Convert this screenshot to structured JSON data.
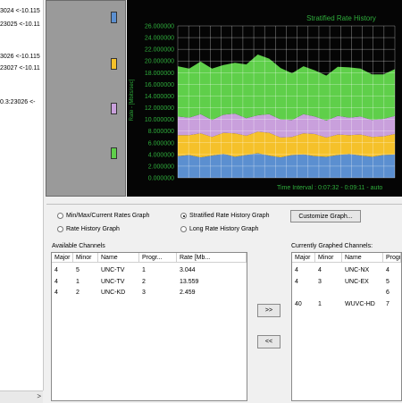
{
  "left_list": {
    "items": [
      "3024 <-10.115",
      "23025 <-10.11",
      "3026 <-10.115",
      "23027 <-10.11",
      "0.3:23026 <-"
    ],
    "scroll_arrow": ">"
  },
  "legend": {
    "items": [
      {
        "label": "",
        "color": "#5b8fd0"
      },
      {
        "label": "",
        "color": "#f5c12a"
      },
      {
        "label": "",
        "color": "#c9a0dc"
      },
      {
        "label": "",
        "color": "#5fcf4a"
      }
    ]
  },
  "chart_data": {
    "type": "area",
    "stacked": true,
    "title": "Stratified Rate History",
    "ylabel": "Rate - [Mbits/sec]",
    "footer": "Time Interval : 0:07:32 - 0:09:11  -  auto",
    "ylim": [
      0,
      26
    ],
    "yticks": [
      "0.000000",
      "2.000000",
      "4.000000",
      "6.000000",
      "8.000000",
      "10.000000",
      "12.000000",
      "14.000000",
      "16.000000",
      "18.000000",
      "20.000000",
      "22.000000",
      "24.000000",
      "26.000000"
    ],
    "x": [
      0,
      1,
      2,
      3,
      4,
      5,
      6,
      7,
      8,
      9,
      10,
      11,
      12,
      13,
      14,
      15,
      16,
      17,
      18,
      19
    ],
    "series": [
      {
        "color": "#5b8fd0",
        "values": [
          3.7,
          3.9,
          3.5,
          3.8,
          4.1,
          3.6,
          3.9,
          4.2,
          3.8,
          3.5,
          3.9,
          4.0,
          3.7,
          3.6,
          3.9,
          4.1,
          3.8,
          3.6,
          3.9,
          4.0
        ]
      },
      {
        "color": "#f5c12a",
        "values": [
          3.6,
          3.4,
          4.1,
          3.2,
          3.6,
          4.0,
          3.3,
          3.7,
          3.9,
          3.4,
          3.1,
          3.6,
          3.8,
          3.3,
          3.5,
          3.2,
          3.6,
          3.4,
          3.2,
          3.5
        ]
      },
      {
        "color": "#c9a0dc",
        "values": [
          3.2,
          3.0,
          3.3,
          2.9,
          3.1,
          3.4,
          3.0,
          2.8,
          3.2,
          3.1,
          2.9,
          3.3,
          3.0,
          2.9,
          3.2,
          3.0,
          3.1,
          2.9,
          3.0,
          3.1
        ]
      },
      {
        "color": "#5fcf4a",
        "values": [
          8.6,
          8.4,
          9.0,
          8.8,
          8.5,
          8.7,
          9.2,
          10.4,
          9.5,
          8.8,
          8.0,
          8.2,
          7.9,
          7.7,
          8.4,
          8.6,
          8.2,
          7.8,
          7.6,
          8.0
        ]
      }
    ]
  },
  "options": {
    "radios": [
      {
        "label": "Min/Max/Current Rates Graph",
        "selected": false
      },
      {
        "label": "Stratified Rate History Graph",
        "selected": true
      },
      {
        "label": "Rate History Graph",
        "selected": false
      },
      {
        "label": "Long Rate History Graph",
        "selected": false
      }
    ],
    "customize_label": "Customize Graph..."
  },
  "available": {
    "label": "Available Channels",
    "columns": [
      "Major",
      "Minor",
      "Name",
      "Progr...",
      "Rate [Mb..."
    ],
    "rows": [
      [
        "4",
        "5",
        "UNC-TV",
        "1",
        "3.044"
      ],
      [
        "4",
        "1",
        "UNC-TV",
        "2",
        "13.559"
      ],
      [
        "4",
        "2",
        "UNC-KD",
        "3",
        "2.459"
      ]
    ]
  },
  "transfer": {
    "add": ">>",
    "remove": "<<"
  },
  "graphed": {
    "label": "Currently Graphed Channels:",
    "columns": [
      "Major",
      "Minor",
      "Name",
      "Progr"
    ],
    "rows": [
      [
        "4",
        "4",
        "UNC-NX",
        "4"
      ],
      [
        "4",
        "3",
        "UNC-EX",
        "5"
      ],
      [
        "",
        "",
        "",
        "6"
      ],
      [
        "40",
        "1",
        "WUVC-HD",
        "7"
      ]
    ]
  }
}
